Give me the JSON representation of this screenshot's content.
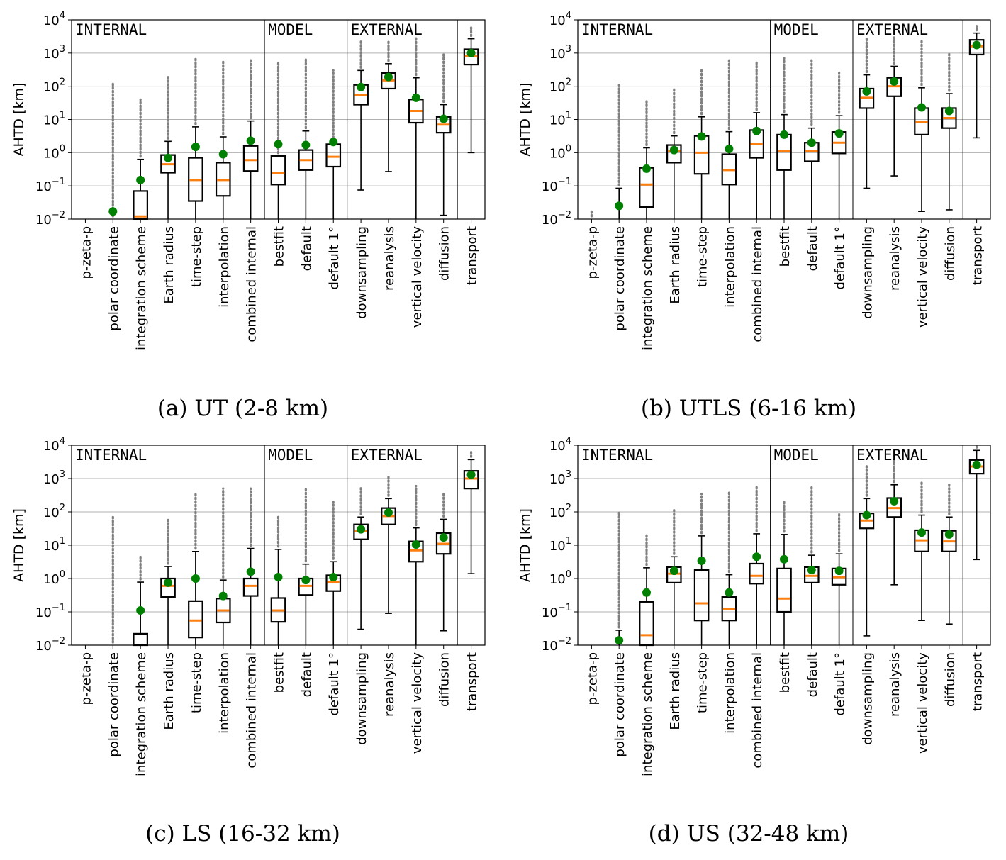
{
  "figure": {
    "ylabel": "AHTD [km]",
    "y_tick_labels": [
      {
        "base": "10",
        "exp": "−2"
      },
      {
        "base": "10",
        "exp": "−1"
      },
      {
        "base": "10",
        "exp": "0"
      },
      {
        "base": "10",
        "exp": "1"
      },
      {
        "base": "10",
        "exp": "2"
      },
      {
        "base": "10",
        "exp": "3"
      },
      {
        "base": "10",
        "exp": "4"
      }
    ],
    "groups": [
      "INTERNAL",
      "MODEL",
      "EXTERNAL"
    ],
    "categories": [
      "p-zeta-p",
      "polar coordinate",
      "integration scheme",
      "Earth radius",
      "time-step",
      "interpolation",
      "combined internal",
      "bestfit",
      "default",
      "default 1°",
      "downsampling",
      "reanalysis",
      "vertical velocity",
      "diffusion",
      "transport"
    ],
    "colors": {
      "median": "#ff7f0e",
      "mean": "#008000",
      "outlier": "#808080",
      "grid": "#b0b0b0"
    }
  },
  "chart_data": [
    {
      "type": "box",
      "caption": "(a) UT (2-8 km)",
      "title": "",
      "xlabel": "",
      "ylabel": "AHTD [km]",
      "yscale": "log",
      "ylim": [
        0.01,
        10000
      ],
      "categories": [
        "p-zeta-p",
        "polar coordinate",
        "integration scheme",
        "Earth radius",
        "time-step",
        "interpolation",
        "combined internal",
        "bestfit",
        "default",
        "default 1°",
        "downsampling",
        "reanalysis",
        "vertical velocity",
        "diffusion",
        "transport"
      ],
      "boxes": [
        null,
        {
          "wlo": null,
          "q1": null,
          "median": null,
          "q3": null,
          "whi": null,
          "mean": 0.017,
          "fmax": 120
        },
        {
          "wlo": null,
          "q1": null,
          "median": 0.012,
          "q3": 0.07,
          "whi": 0.63,
          "mean": 0.15,
          "fmax": 40
        },
        {
          "wlo": null,
          "q1": 0.25,
          "median": 0.45,
          "q3": 0.85,
          "whi": 2.2,
          "mean": 0.7,
          "fmax": 200
        },
        {
          "wlo": null,
          "q1": 0.035,
          "median": 0.15,
          "q3": 0.7,
          "whi": 6,
          "mean": 1.5,
          "fmax": 700
        },
        {
          "wlo": null,
          "q1": 0.05,
          "median": 0.15,
          "q3": 0.5,
          "whi": 3,
          "mean": 0.9,
          "fmax": 600
        },
        {
          "wlo": null,
          "q1": 0.28,
          "median": 0.6,
          "q3": 1.6,
          "whi": 9,
          "mean": 2.3,
          "fmax": 700
        },
        {
          "wlo": null,
          "q1": 0.11,
          "median": 0.25,
          "q3": 0.8,
          "whi": null,
          "mean": 1.8,
          "fmax": 500
        },
        {
          "wlo": null,
          "q1": 0.3,
          "median": 0.6,
          "q3": 1.2,
          "whi": 4.5,
          "mean": 1.7,
          "fmax": 700
        },
        {
          "wlo": null,
          "q1": 0.38,
          "median": 0.75,
          "q3": 1.8,
          "whi": null,
          "mean": 2.1,
          "fmax": 300
        },
        {
          "wlo": 0.075,
          "q1": 28,
          "median": 55,
          "q3": 110,
          "whi": 300,
          "mean": 95,
          "fmax": 2500
        },
        {
          "wlo": 0.27,
          "q1": 85,
          "median": 150,
          "q3": 250,
          "whi": 480,
          "mean": 190,
          "fmax": 2500
        },
        {
          "wlo": null,
          "q1": 8,
          "median": 18,
          "q3": 40,
          "whi": 180,
          "mean": 45,
          "fmax": 3000
        },
        {
          "wlo": 0.013,
          "q1": 4,
          "median": 7,
          "q3": 12,
          "whi": 28,
          "mean": 10.5,
          "fmax": 1000
        },
        {
          "wlo": 1,
          "q1": 450,
          "median": 800,
          "q3": 1300,
          "whi": 2700,
          "mean": 1000,
          "fmax": 6000
        }
      ]
    },
    {
      "type": "box",
      "caption": "(b) UTLS (6-16 km)",
      "title": "",
      "xlabel": "",
      "ylabel": "AHTD [km]",
      "yscale": "log",
      "ylim": [
        0.01,
        10000
      ],
      "categories": [
        "p-zeta-p",
        "polar coordinate",
        "integration scheme",
        "Earth radius",
        "time-step",
        "interpolation",
        "combined internal",
        "bestfit",
        "default",
        "default 1°",
        "downsampling",
        "reanalysis",
        "vertical velocity",
        "diffusion",
        "transport"
      ],
      "boxes": [
        {
          "wlo": null,
          "q1": null,
          "median": null,
          "q3": null,
          "whi": null,
          "mean": null,
          "fmax": 0.017
        },
        {
          "wlo": null,
          "q1": null,
          "median": null,
          "q3": null,
          "whi": 0.085,
          "mean": 0.025,
          "fmax": 120
        },
        {
          "wlo": null,
          "q1": 0.023,
          "median": 0.11,
          "q3": 0.35,
          "whi": 1.4,
          "mean": 0.33,
          "fmax": 35
        },
        {
          "wlo": null,
          "q1": 0.5,
          "median": 1.1,
          "q3": 1.7,
          "whi": 3.2,
          "mean": 1.2,
          "fmax": 80
        },
        {
          "wlo": null,
          "q1": 0.23,
          "median": 1.0,
          "q3": 3.2,
          "whi": 12,
          "mean": 3.1,
          "fmax": 300
        },
        {
          "wlo": null,
          "q1": 0.11,
          "median": 0.3,
          "q3": 0.9,
          "whi": 4.3,
          "mean": 1.3,
          "fmax": 600
        },
        {
          "wlo": null,
          "q1": 0.7,
          "median": 1.8,
          "q3": 4.8,
          "whi": 16,
          "mean": 4.5,
          "fmax": 600
        },
        {
          "wlo": null,
          "q1": 0.3,
          "median": 1.1,
          "q3": 3.5,
          "whi": 14,
          "mean": 3.5,
          "fmax": 700
        },
        {
          "wlo": null,
          "q1": 0.55,
          "median": 1.1,
          "q3": 2.0,
          "whi": 5.5,
          "mean": 2.0,
          "fmax": 700
        },
        {
          "wlo": null,
          "q1": 0.95,
          "median": 2.0,
          "q3": 4.2,
          "whi": 13,
          "mean": 3.8,
          "fmax": 300
        },
        {
          "wlo": 0.085,
          "q1": 22,
          "median": 45,
          "q3": 85,
          "whi": 220,
          "mean": 70,
          "fmax": 3000
        },
        {
          "wlo": 0.2,
          "q1": 50,
          "median": 100,
          "q3": 180,
          "whi": 400,
          "mean": 140,
          "fmax": 3000
        },
        {
          "wlo": 0.017,
          "q1": 3.5,
          "median": 8.5,
          "q3": 22,
          "whi": 90,
          "mean": 23,
          "fmax": 2500
        },
        {
          "wlo": 0.019,
          "q1": 5.5,
          "median": 11,
          "q3": 22,
          "whi": 60,
          "mean": 18,
          "fmax": 1000
        },
        {
          "wlo": 2.8,
          "q1": 900,
          "median": 1600,
          "q3": 2500,
          "whi": 4000,
          "mean": 1750,
          "fmax": 6500
        }
      ]
    },
    {
      "type": "box",
      "caption": "(c) LS (16-32 km)",
      "title": "",
      "xlabel": "",
      "ylabel": "AHTD [km]",
      "yscale": "log",
      "ylim": [
        0.01,
        10000
      ],
      "categories": [
        "p-zeta-p",
        "polar coordinate",
        "integration scheme",
        "Earth radius",
        "time-step",
        "interpolation",
        "combined internal",
        "bestfit",
        "default",
        "default 1°",
        "downsampling",
        "reanalysis",
        "vertical velocity",
        "diffusion",
        "transport"
      ],
      "boxes": [
        null,
        {
          "wlo": null,
          "q1": null,
          "median": null,
          "q3": null,
          "whi": null,
          "mean": null,
          "fmax": 70
        },
        {
          "wlo": null,
          "q1": null,
          "median": null,
          "q3": 0.022,
          "whi": 0.78,
          "mean": 0.11,
          "fmax": 5
        },
        {
          "wlo": null,
          "q1": 0.28,
          "median": 0.6,
          "q3": 1.0,
          "whi": 2.3,
          "mean": 0.75,
          "fmax": 65
        },
        {
          "wlo": null,
          "q1": 0.017,
          "median": 0.055,
          "q3": 0.21,
          "whi": 6.5,
          "mean": 1.0,
          "fmax": 350
        },
        {
          "wlo": null,
          "q1": 0.048,
          "median": 0.11,
          "q3": 0.25,
          "whi": 0.9,
          "mean": 0.3,
          "fmax": 500
        },
        {
          "wlo": null,
          "q1": 0.3,
          "median": 0.6,
          "q3": 1.0,
          "whi": 8,
          "mean": 1.6,
          "fmax": 500
        },
        {
          "wlo": null,
          "q1": 0.05,
          "median": 0.11,
          "q3": 0.26,
          "whi": 7.5,
          "mean": 1.1,
          "fmax": 70
        },
        {
          "wlo": null,
          "q1": 0.32,
          "median": 0.6,
          "q3": 1.0,
          "whi": 2.7,
          "mean": 0.9,
          "fmax": 500
        },
        {
          "wlo": null,
          "q1": 0.42,
          "median": 0.8,
          "q3": 1.25,
          "whi": 3.2,
          "mean": 1.1,
          "fmax": 200
        },
        {
          "wlo": 0.03,
          "q1": 15,
          "median": 27,
          "q3": 42,
          "whi": 70,
          "mean": 30,
          "fmax": 600
        },
        {
          "wlo": 0.09,
          "q1": 42,
          "median": 75,
          "q3": 130,
          "whi": 250,
          "mean": 95,
          "fmax": 1200
        },
        {
          "wlo": null,
          "q1": 3.2,
          "median": 7,
          "q3": 13,
          "whi": 33,
          "mean": 10.5,
          "fmax": 600
        },
        {
          "wlo": 0.027,
          "q1": 5.5,
          "median": 11,
          "q3": 23,
          "whi": 60,
          "mean": 17,
          "fmax": 350
        },
        {
          "wlo": 1.4,
          "q1": 500,
          "median": 1000,
          "q3": 1700,
          "whi": 3700,
          "mean": 1300,
          "fmax": 7000
        }
      ]
    },
    {
      "type": "box",
      "caption": "(d) US (32-48 km)",
      "title": "",
      "xlabel": "",
      "ylabel": "AHTD [km]",
      "yscale": "log",
      "ylim": [
        0.01,
        10000
      ],
      "categories": [
        "p-zeta-p",
        "polar coordinate",
        "integration scheme",
        "Earth radius",
        "time-step",
        "interpolation",
        "combined internal",
        "bestfit",
        "default",
        "default 1°",
        "downsampling",
        "reanalysis",
        "vertical velocity",
        "diffusion",
        "transport"
      ],
      "boxes": [
        null,
        {
          "wlo": null,
          "q1": null,
          "median": null,
          "q3": null,
          "whi": 0.028,
          "mean": 0.014,
          "fmax": 100
        },
        {
          "wlo": null,
          "q1": null,
          "median": 0.02,
          "q3": 0.2,
          "whi": 2.1,
          "mean": 0.38,
          "fmax": 22
        },
        {
          "wlo": null,
          "q1": 0.75,
          "median": 1.4,
          "q3": 2.2,
          "whi": 4.5,
          "mean": 1.7,
          "fmax": 130
        },
        {
          "wlo": null,
          "q1": 0.055,
          "median": 0.18,
          "q3": 1.8,
          "whi": 19,
          "mean": 3.4,
          "fmax": 350
        },
        {
          "wlo": null,
          "q1": 0.055,
          "median": 0.12,
          "q3": 0.28,
          "whi": 1.3,
          "mean": 0.38,
          "fmax": 400
        },
        {
          "wlo": null,
          "q1": 0.7,
          "median": 1.2,
          "q3": 2.8,
          "whi": 22,
          "mean": 4.5,
          "fmax": 600
        },
        {
          "wlo": null,
          "q1": 0.1,
          "median": 0.25,
          "q3": 2.0,
          "whi": 21,
          "mean": 3.8,
          "fmax": 200
        },
        {
          "wlo": null,
          "q1": 0.75,
          "median": 1.2,
          "q3": 2.2,
          "whi": 5,
          "mean": 1.8,
          "fmax": 600
        },
        {
          "wlo": null,
          "q1": 0.65,
          "median": 1.1,
          "q3": 2.0,
          "whi": 5.5,
          "mean": 1.7,
          "fmax": 90
        },
        {
          "wlo": 0.019,
          "q1": 32,
          "median": 55,
          "q3": 90,
          "whi": 250,
          "mean": 80,
          "fmax": 2400
        },
        {
          "wlo": 0.65,
          "q1": 70,
          "median": 130,
          "q3": 260,
          "whi": 650,
          "mean": 210,
          "fmax": 4000
        },
        {
          "wlo": 0.055,
          "q1": 6.5,
          "median": 14,
          "q3": 28,
          "whi": 80,
          "mean": 24,
          "fmax": 800
        },
        {
          "wlo": 0.043,
          "q1": 6.5,
          "median": 13,
          "q3": 27,
          "whi": 70,
          "mean": 21,
          "fmax": 700
        },
        {
          "wlo": 3.7,
          "q1": 1400,
          "median": 2300,
          "q3": 3600,
          "whi": 7000,
          "mean": 2600,
          "fmax": 9000
        }
      ]
    }
  ]
}
